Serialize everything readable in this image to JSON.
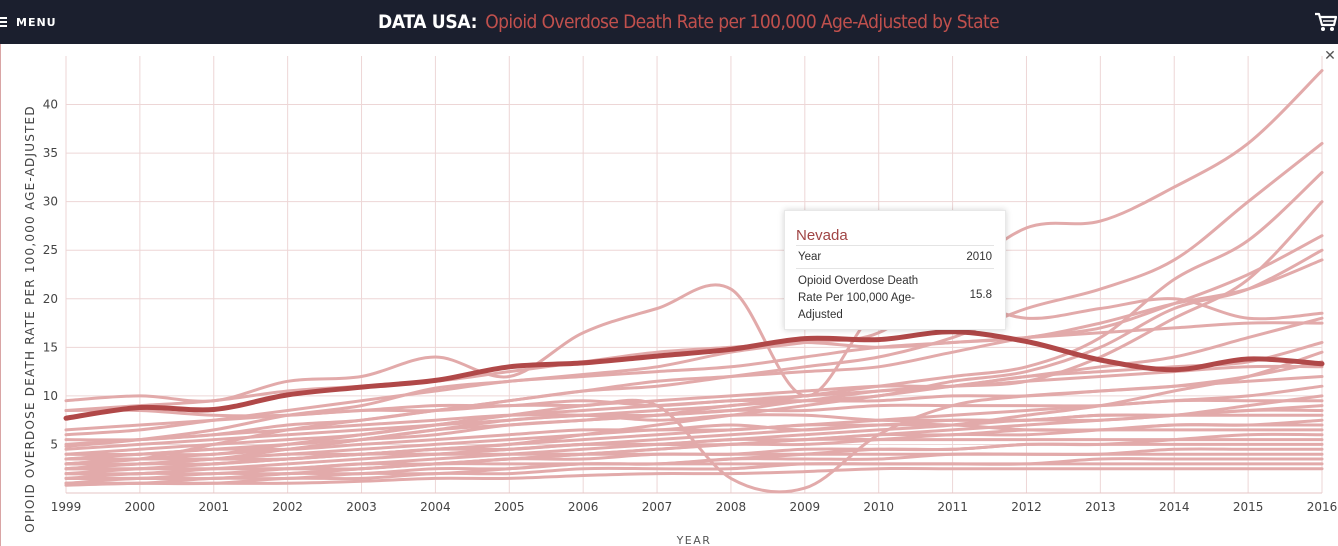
{
  "header": {
    "menu_label": "MENU",
    "brand": "DATA USA:",
    "title": "Opioid Overdose Death Rate per 100,000 Age-Adjusted by State",
    "brand_color": "#ffffff",
    "title_color": "#c0504d",
    "bar_color": "#1b1f2e",
    "cart_icon": "shopping-cart-icon",
    "menu_icon": "hamburger-icon",
    "close_icon": "close-icon",
    "close_glyph": "✕"
  },
  "tooltip": {
    "state": "Nevada",
    "year_label": "Year",
    "year_value": "2010",
    "metric_label": "Opioid Overdose Death Rate Per 100,000 Age-Adjusted",
    "metric_value": "15.8"
  },
  "chart_data": {
    "type": "line",
    "xlabel": "YEAR",
    "ylabel": "OPIOID OVERDOSE DEATH RATE PER 100,000 AGE-ADJUSTED",
    "x": [
      1999,
      2000,
      2001,
      2002,
      2003,
      2004,
      2005,
      2006,
      2007,
      2008,
      2009,
      2010,
      2011,
      2012,
      2013,
      2014,
      2015,
      2016
    ],
    "y_ticks": [
      5,
      10,
      15,
      20,
      25,
      30,
      35,
      40
    ],
    "xlim": [
      1999,
      2016
    ],
    "ylim": [
      0,
      45
    ],
    "grid": true,
    "highlight_color": "#b04848",
    "series_color": "#e2aaaa",
    "highlighted_series": {
      "name": "Nevada",
      "values": [
        7.7,
        8.8,
        8.6,
        10.1,
        10.9,
        11.6,
        13.0,
        13.4,
        14.1,
        14.8,
        15.9,
        15.8,
        16.6,
        15.6,
        13.7,
        12.7,
        13.8,
        13.3
      ]
    },
    "series": [
      {
        "values": [
          4.8,
          5.5,
          6.5,
          8.0,
          9.0,
          10.8,
          11.5,
          12.2,
          13.0,
          14.5,
          15.5,
          16.5,
          22.0,
          27.3,
          28.0,
          31.5,
          36.0,
          43.5
        ]
      },
      {
        "values": [
          3.0,
          3.5,
          5.0,
          6.5,
          7.5,
          8.5,
          9.5,
          10.5,
          11.0,
          12.0,
          13.0,
          14.0,
          16.0,
          19.0,
          21.0,
          24.0,
          30.0,
          36.0
        ]
      },
      {
        "values": [
          2.5,
          3.0,
          3.5,
          4.5,
          5.5,
          6.5,
          7.5,
          8.0,
          8.5,
          9.0,
          10.0,
          11.0,
          12.0,
          13.0,
          16.0,
          22.0,
          26.0,
          33.0
        ]
      },
      {
        "values": [
          3.5,
          4.0,
          4.5,
          5.0,
          5.5,
          6.0,
          7.0,
          7.5,
          8.0,
          9.0,
          9.5,
          10.5,
          11.0,
          11.5,
          14.0,
          18.0,
          22.0,
          30.0
        ]
      },
      {
        "values": [
          5.0,
          5.5,
          6.0,
          7.0,
          7.5,
          8.5,
          9.5,
          10.5,
          11.5,
          12.0,
          12.5,
          13.0,
          14.5,
          16.0,
          17.0,
          19.5,
          22.5,
          26.5
        ]
      },
      {
        "values": [
          3.0,
          3.5,
          4.0,
          4.5,
          5.5,
          6.5,
          7.0,
          7.5,
          8.0,
          8.5,
          9.5,
          10.0,
          11.5,
          12.5,
          15.0,
          19.0,
          21.0,
          25.0
        ]
      },
      {
        "values": [
          8.5,
          9.0,
          9.5,
          10.5,
          11.0,
          11.5,
          12.5,
          13.5,
          14.5,
          15.0,
          15.5,
          15.0,
          15.5,
          16.0,
          17.5,
          19.5,
          21.0,
          24.0
        ]
      },
      {
        "values": [
          9.5,
          10.0,
          9.5,
          11.5,
          12.0,
          14.0,
          12.0,
          16.5,
          19.0,
          21.0,
          10.0,
          19.0,
          20.0,
          18.0,
          19.0,
          20.0,
          18.0,
          18.5
        ]
      },
      {
        "values": [
          6.0,
          6.5,
          7.5,
          8.5,
          9.5,
          10.5,
          11.5,
          12.0,
          12.5,
          13.0,
          14.0,
          15.0,
          15.5,
          16.0,
          16.5,
          17.0,
          17.5,
          17.5
        ]
      },
      {
        "values": [
          2.0,
          2.5,
          3.0,
          3.5,
          4.0,
          4.5,
          5.0,
          6.0,
          7.0,
          8.0,
          9.0,
          10.0,
          11.0,
          12.0,
          13.0,
          14.0,
          16.0,
          18.0
        ]
      },
      {
        "values": [
          4.0,
          4.5,
          5.0,
          5.5,
          6.0,
          7.0,
          8.0,
          8.5,
          9.0,
          9.5,
          10.0,
          10.5,
          11.0,
          12.0,
          12.5,
          13.0,
          13.5,
          15.5
        ]
      },
      {
        "values": [
          1.5,
          2.0,
          2.0,
          2.5,
          3.0,
          3.5,
          4.0,
          4.5,
          5.0,
          5.5,
          6.0,
          6.5,
          7.0,
          8.0,
          9.0,
          10.5,
          12.0,
          14.5
        ]
      },
      {
        "values": [
          3.5,
          4.0,
          4.0,
          5.0,
          6.0,
          7.0,
          8.0,
          9.0,
          9.5,
          10.0,
          10.5,
          11.0,
          11.0,
          11.5,
          12.0,
          12.5,
          13.0,
          13.0
        ]
      },
      {
        "values": [
          6.5,
          7.0,
          7.5,
          8.0,
          8.5,
          9.0,
          9.0,
          9.5,
          9.0,
          9.5,
          9.5,
          9.5,
          10.0,
          10.0,
          10.5,
          11.0,
          11.5,
          12.0
        ]
      },
      {
        "values": [
          2.5,
          2.5,
          3.0,
          3.5,
          4.0,
          4.5,
          5.0,
          5.5,
          6.0,
          6.5,
          7.0,
          7.5,
          8.0,
          8.5,
          9.0,
          9.5,
          10.0,
          11.0
        ]
      },
      {
        "values": [
          1.0,
          1.5,
          1.5,
          2.0,
          2.5,
          3.0,
          3.5,
          4.0,
          4.5,
          5.0,
          5.5,
          6.0,
          6.5,
          7.0,
          7.5,
          8.0,
          9.0,
          10.0
        ]
      },
      {
        "values": [
          4.5,
          5.0,
          5.5,
          6.0,
          6.5,
          7.0,
          7.5,
          8.0,
          8.0,
          8.5,
          8.5,
          9.0,
          9.0,
          9.0,
          9.0,
          9.5,
          9.5,
          9.5
        ]
      },
      {
        "values": [
          2.0,
          2.0,
          2.5,
          3.0,
          3.5,
          4.0,
          4.5,
          5.0,
          5.5,
          6.0,
          6.5,
          7.0,
          7.0,
          7.5,
          7.5,
          8.0,
          8.5,
          9.0
        ]
      },
      {
        "values": [
          3.0,
          3.0,
          3.5,
          4.0,
          4.5,
          5.0,
          5.5,
          6.0,
          6.5,
          6.5,
          7.0,
          7.0,
          7.5,
          7.5,
          8.0,
          8.0,
          8.5,
          8.5
        ]
      },
      {
        "values": [
          5.5,
          5.5,
          6.0,
          6.5,
          7.0,
          7.5,
          8.0,
          8.0,
          7.5,
          8.0,
          8.0,
          7.5,
          7.5,
          7.5,
          8.0,
          8.0,
          8.0,
          8.0
        ]
      },
      {
        "values": [
          1.5,
          1.5,
          2.0,
          2.0,
          2.5,
          3.0,
          3.5,
          4.0,
          4.5,
          5.0,
          5.0,
          5.5,
          6.0,
          6.0,
          6.5,
          7.0,
          7.0,
          7.5
        ]
      },
      {
        "values": [
          2.5,
          3.0,
          3.0,
          3.5,
          4.0,
          4.0,
          4.5,
          5.0,
          5.0,
          5.5,
          5.5,
          6.0,
          6.0,
          6.5,
          6.5,
          7.0,
          7.0,
          7.0
        ]
      },
      {
        "values": [
          4.0,
          4.0,
          4.5,
          4.5,
          5.0,
          5.5,
          6.0,
          6.5,
          6.5,
          7.0,
          6.5,
          7.0,
          7.0,
          6.5,
          6.5,
          6.5,
          6.5,
          6.5
        ]
      },
      {
        "values": [
          1.0,
          1.0,
          1.5,
          1.5,
          2.0,
          2.0,
          2.5,
          3.0,
          3.0,
          3.5,
          4.0,
          4.5,
          4.5,
          5.0,
          5.0,
          5.5,
          6.0,
          6.0
        ]
      },
      {
        "values": [
          3.0,
          3.5,
          3.5,
          4.0,
          4.0,
          4.5,
          4.5,
          5.0,
          5.0,
          5.0,
          5.5,
          5.5,
          5.5,
          5.5,
          5.5,
          5.5,
          5.5,
          5.5
        ]
      },
      {
        "values": [
          2.0,
          2.0,
          2.5,
          2.5,
          3.0,
          3.0,
          3.5,
          3.5,
          4.0,
          4.0,
          4.5,
          4.5,
          4.5,
          5.0,
          5.0,
          5.0,
          5.0,
          5.0
        ]
      },
      {
        "values": [
          1.5,
          1.5,
          1.5,
          2.0,
          2.0,
          2.5,
          2.5,
          3.0,
          3.0,
          3.5,
          3.5,
          3.5,
          4.0,
          4.0,
          4.0,
          4.5,
          4.5,
          4.5
        ]
      },
      {
        "values": [
          3.5,
          3.5,
          3.5,
          3.5,
          4.0,
          4.0,
          4.0,
          4.0,
          4.0,
          4.0,
          4.0,
          4.0,
          4.0,
          4.0,
          4.0,
          4.0,
          4.0,
          4.0
        ]
      },
      {
        "values": [
          1.0,
          1.0,
          1.0,
          1.5,
          1.5,
          2.0,
          2.0,
          2.5,
          2.5,
          2.5,
          3.0,
          3.0,
          3.0,
          3.0,
          3.5,
          3.5,
          3.5,
          3.5
        ]
      },
      {
        "values": [
          2.5,
          2.5,
          2.5,
          2.5,
          2.5,
          3.0,
          3.0,
          3.0,
          3.0,
          3.0,
          3.0,
          3.0,
          3.0,
          3.0,
          3.0,
          3.0,
          3.0,
          3.0
        ]
      },
      {
        "values": [
          0.8,
          1.0,
          1.0,
          1.0,
          1.2,
          1.5,
          1.5,
          1.8,
          2.0,
          2.0,
          2.2,
          2.5,
          2.5,
          2.5,
          2.5,
          2.5,
          2.5,
          2.5
        ]
      },
      {
        "values": [
          8.5,
          8.5,
          8.0,
          8.0,
          8.5,
          8.5,
          9.0,
          9.0,
          9.0,
          1.5,
          0.5,
          6.0,
          9.0,
          10.0,
          10.5,
          11.0,
          12.0,
          13.5
        ]
      }
    ]
  }
}
